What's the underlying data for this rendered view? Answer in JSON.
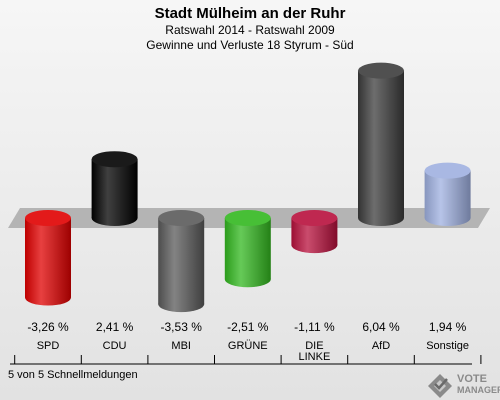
{
  "header": {
    "title": "Stadt Mülheim an der Ruhr",
    "subtitle": "Ratswahl 2014 - Ratswahl 2009",
    "subtitle2": "Gewinne und Verluste 18 Styrum - Süd"
  },
  "footer": {
    "status": "5 von 5 Schnellmeldungen"
  },
  "logo": {
    "line1": "VOTE",
    "line2": "MANAGER"
  },
  "chart_data": {
    "type": "bar",
    "title": "Stadt Mülheim an der Ruhr",
    "subtitle": "Ratswahl 2014 - Ratswahl 2009",
    "categories": [
      "SPD",
      "CDU",
      "MBI",
      "GRÜNE",
      "DIE LINKE",
      "AfD",
      "Sonstige"
    ],
    "values": [
      -3.26,
      2.41,
      -3.53,
      -2.51,
      -1.11,
      6.04,
      1.94
    ],
    "value_labels": [
      "-3,26 %",
      "2,41 %",
      "-3,53 %",
      "-2,51 %",
      "-1,11 %",
      "6,04 %",
      "1,94 %"
    ],
    "colors": [
      "#e00000",
      "#000000",
      "#5a5a5a",
      "#33b820",
      "#b8103c",
      "#3c3c3c",
      "#9fb0e0"
    ],
    "xlabel": "",
    "ylabel": "",
    "grid": false,
    "legend": "none"
  }
}
